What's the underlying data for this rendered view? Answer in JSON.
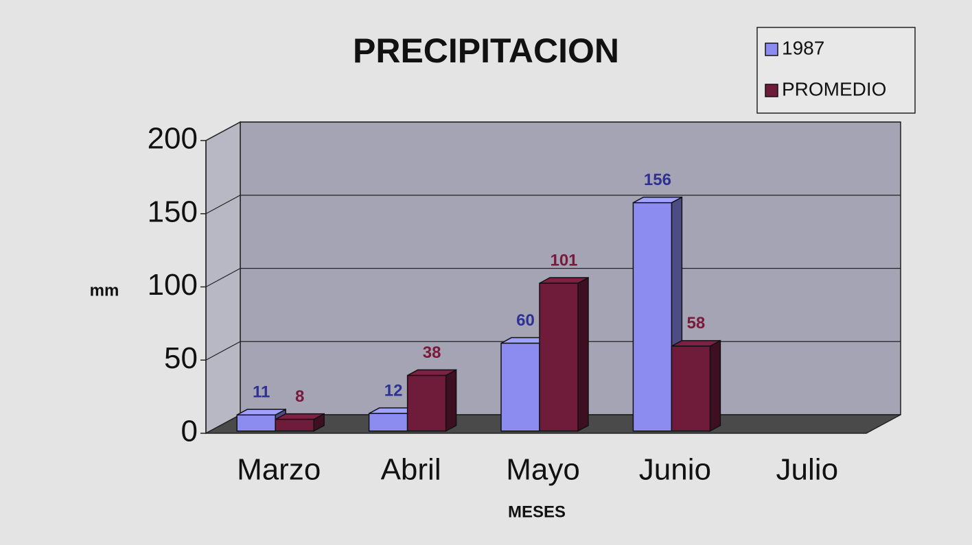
{
  "chart_data": {
    "type": "bar3d",
    "title": "PRECIPITACION",
    "categories": [
      "Marzo",
      "Abril",
      "Mayo",
      "Junio",
      "Julio"
    ],
    "series": [
      {
        "name": "1987",
        "color": "#8c8cf0",
        "values": [
          11,
          12,
          60,
          156,
          null
        ]
      },
      {
        "name": "PROMEDIO",
        "color": "#6e1c3a",
        "values": [
          8,
          38,
          101,
          58,
          null
        ]
      }
    ],
    "ylabel": "mm",
    "xlabel": "MESES",
    "ylim": [
      0,
      200
    ],
    "yticks": [
      0,
      50,
      100,
      150,
      200
    ],
    "grid": true,
    "legend": "top-right"
  }
}
